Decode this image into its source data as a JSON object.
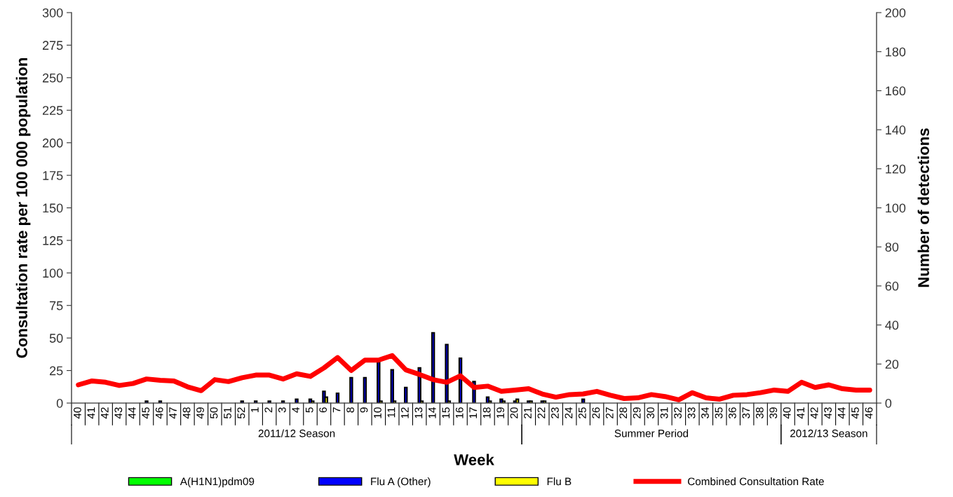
{
  "chart_data": {
    "type": "bar",
    "xlabel": "Week",
    "ylabel": "Consultation rate per 100 000 population",
    "y2label": "Number of detections",
    "categories": [
      "40",
      "41",
      "42",
      "43",
      "44",
      "45",
      "46",
      "47",
      "48",
      "49",
      "50",
      "51",
      "52",
      "1",
      "2",
      "3",
      "4",
      "5",
      "6",
      "7",
      "8",
      "9",
      "10",
      "11",
      "12",
      "13",
      "14",
      "15",
      "16",
      "17",
      "18",
      "19",
      "20",
      "21",
      "22",
      "23",
      "24",
      "25",
      "26",
      "27",
      "28",
      "29",
      "30",
      "31",
      "32",
      "33",
      "34",
      "35",
      "36",
      "37",
      "38",
      "39",
      "40",
      "41",
      "42",
      "43",
      "44",
      "45",
      "46"
    ],
    "series": [
      {
        "name": "A(H1N1)pdm09",
        "color": "#00ff00",
        "axis": "y2",
        "values": [
          0,
          0,
          0,
          0,
          0,
          0,
          0,
          0,
          0,
          0,
          0,
          0,
          0,
          0,
          0,
          0,
          0,
          0,
          0,
          0,
          0,
          0,
          0,
          0,
          0,
          0,
          0,
          0,
          0,
          0,
          0,
          0,
          0,
          0,
          0,
          0,
          0,
          0,
          0,
          0,
          0,
          0,
          0,
          0,
          0,
          0,
          0,
          0,
          0,
          0,
          0,
          0,
          0,
          0,
          0,
          0,
          0,
          0,
          0
        ]
      },
      {
        "name": "Flu A (Other)",
        "color": "#0000ff",
        "axis": "y2",
        "values": [
          0,
          0,
          0,
          0,
          0,
          1,
          1,
          0,
          0,
          0,
          0,
          0,
          1,
          1,
          1,
          1,
          2,
          2,
          6,
          5,
          13,
          13,
          21,
          17,
          8,
          18,
          36,
          30,
          23,
          11,
          3,
          2,
          1,
          1,
          1,
          0,
          0,
          2,
          0,
          0,
          0,
          0,
          0,
          0,
          0,
          0,
          0,
          0,
          0,
          0,
          0,
          0,
          0,
          0,
          0,
          0,
          0,
          0,
          0
        ]
      },
      {
        "name": "Flu B",
        "color": "#ffff00",
        "axis": "y2",
        "values": [
          0,
          0,
          0,
          0,
          0,
          0,
          0,
          0,
          0,
          0,
          0,
          0,
          0,
          0,
          0,
          0,
          0,
          1,
          3,
          0,
          0,
          0,
          1,
          1,
          0,
          1,
          0,
          1,
          0,
          0,
          1,
          1,
          2,
          1,
          1,
          0,
          0,
          0,
          0,
          0,
          0,
          0,
          0,
          0,
          0,
          0,
          0,
          0,
          0,
          0,
          0,
          0,
          0,
          0,
          0,
          0,
          0,
          0,
          0
        ]
      },
      {
        "name": "Combined Consultation Rate",
        "color": "#ff0000",
        "type": "line",
        "values": [
          14,
          17,
          16,
          13.5,
          15,
          18.5,
          17.5,
          17,
          12.5,
          9.5,
          18,
          16.5,
          19.5,
          21.5,
          21.5,
          18.5,
          22.5,
          20.5,
          27,
          35,
          25,
          33,
          33,
          36.5,
          25.5,
          22,
          18,
          16,
          21,
          12,
          13,
          9,
          10,
          11,
          7,
          4.5,
          6.5,
          7,
          9,
          6,
          3.5,
          4,
          6.5,
          5,
          2.5,
          8,
          4,
          3,
          6,
          6.5,
          8,
          10,
          9,
          16,
          12,
          14,
          11,
          10,
          10
        ]
      }
    ],
    "ylim": [
      0,
      300
    ],
    "yticks": [
      0,
      25,
      50,
      75,
      100,
      125,
      150,
      175,
      200,
      225,
      250,
      275,
      300
    ],
    "y2lim": [
      0,
      200
    ],
    "y2ticks": [
      0,
      20,
      40,
      60,
      80,
      100,
      120,
      140,
      160,
      180,
      200
    ],
    "annotations": [
      "2011/12 Season",
      "Summer Period",
      "2012/13 Season"
    ],
    "legend": "bottom",
    "grid": false
  }
}
